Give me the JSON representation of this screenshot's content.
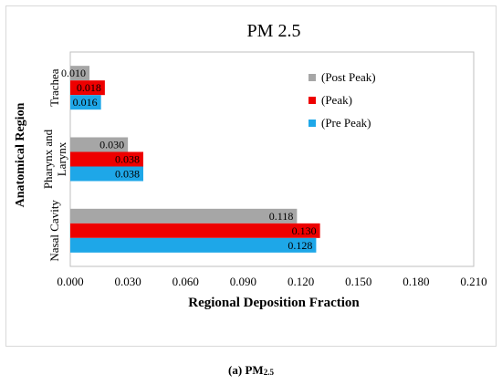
{
  "chart_data": {
    "type": "bar",
    "orientation": "horizontal",
    "title": "PM 2.5",
    "xlabel": "Regional Deposition Fraction",
    "ylabel": "Anatomical Region",
    "categories": [
      "Trachea",
      "Pharynx and Larynx",
      "Nasal Cavity"
    ],
    "series": [
      {
        "name": "(Post Peak)",
        "color": "#a6a6a6",
        "values": [
          0.01,
          0.03,
          0.118
        ]
      },
      {
        "name": "(Peak)",
        "color": "#ee0000",
        "values": [
          0.018,
          0.038,
          0.13
        ]
      },
      {
        "name": "(Pre Peak)",
        "color": "#1ea7e8",
        "values": [
          0.016,
          0.038,
          0.128
        ]
      }
    ],
    "data_labels": [
      [
        "0.010",
        "0.030",
        "0.118"
      ],
      [
        "0.018",
        "0.038",
        "0.130"
      ],
      [
        "0.016",
        "0.038",
        "0.128"
      ]
    ],
    "xlim": [
      0,
      0.21
    ],
    "xticks": [
      "0.000",
      "0.030",
      "0.060",
      "0.090",
      "0.120",
      "0.150",
      "0.180",
      "0.210"
    ],
    "grid": false,
    "legend_position": "right"
  },
  "caption": {
    "label": "(a)",
    "text": "PM",
    "subscript": "2.5"
  }
}
